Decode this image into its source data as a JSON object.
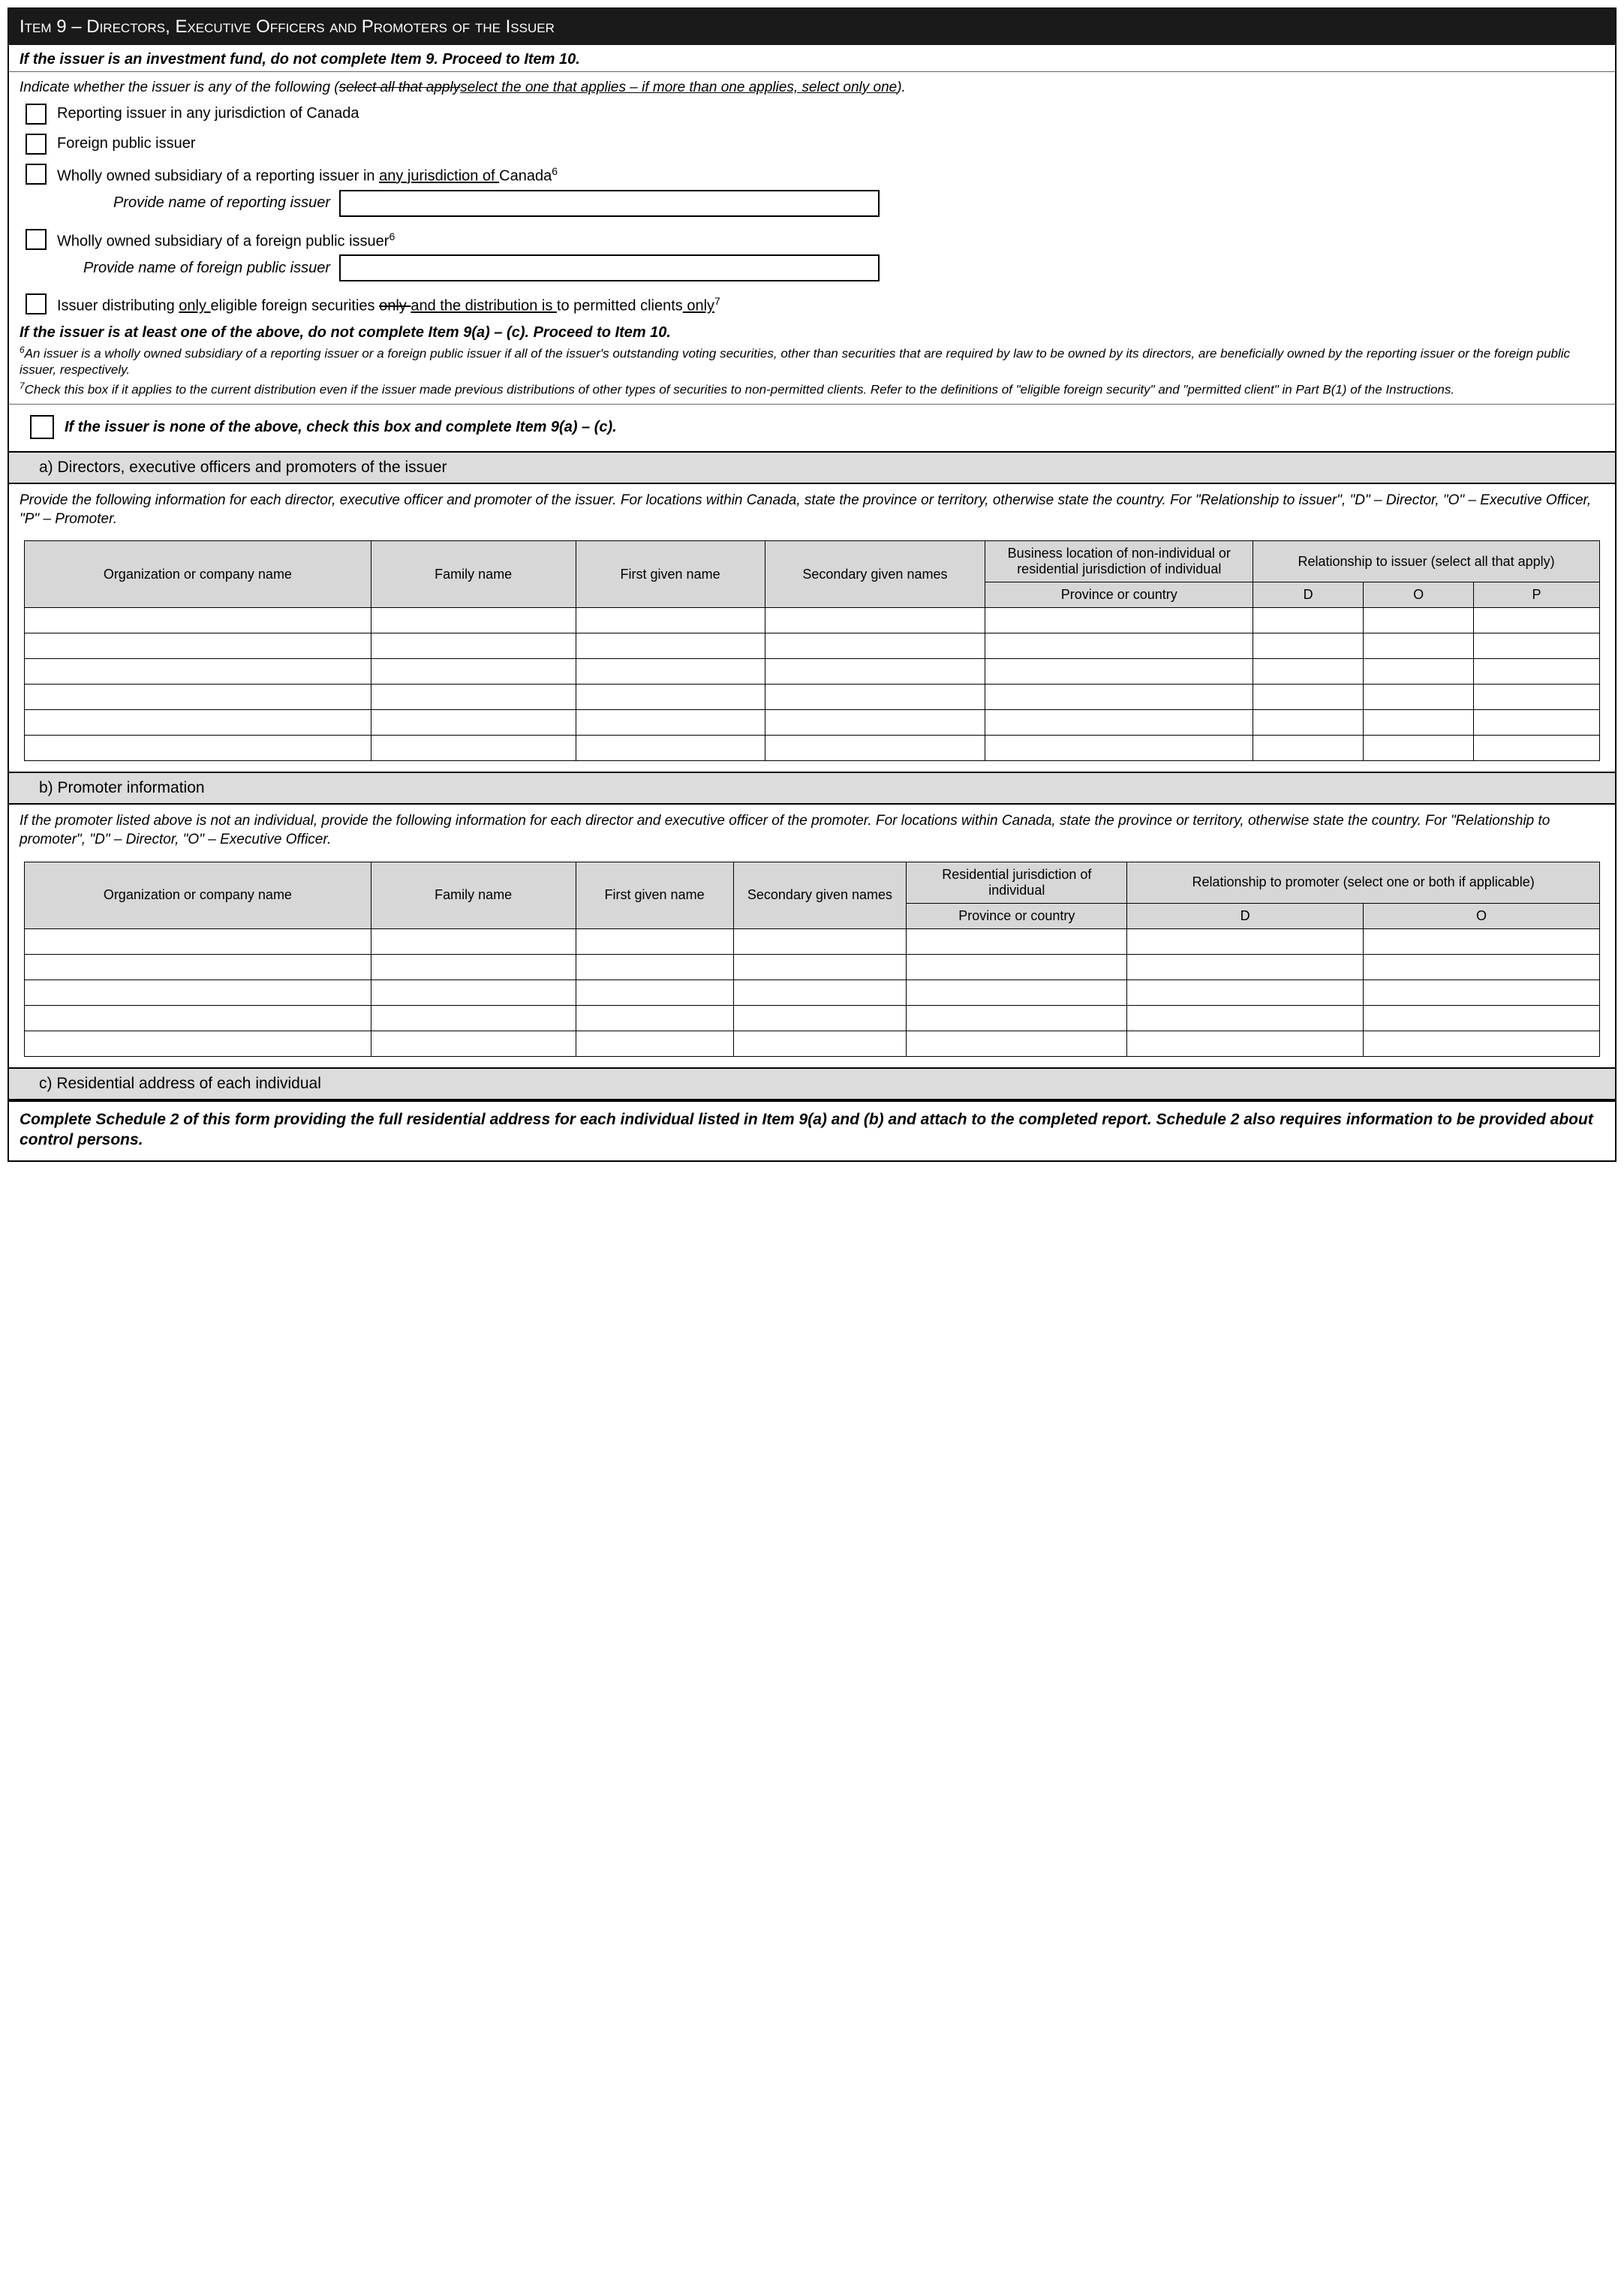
{
  "header": "Item 9 – Directors, Executive Officers and Promoters of the Issuer",
  "top_instruction": "If the issuer is an investment fund, do not complete Item 9. Proceed to Item 10.",
  "indicate": {
    "prefix": "Indicate whether the issuer is any of the following (",
    "strike1": "select all that apply",
    "underline1": "select the one that applies – if more than one applies, select only one",
    "suffix": ")."
  },
  "checks": {
    "c1": "Reporting issuer in any jurisdiction of Canada",
    "c2": "Foreign public issuer",
    "c3_pre": "Wholly owned subsidiary of a reporting issuer in ",
    "c3_under": "any jurisdiction of ",
    "c3_post": "Canada",
    "c3_sup": "6",
    "c3_provide": "Provide name of reporting issuer",
    "c4_text": "Wholly owned subsidiary of a foreign public issuer",
    "c4_sup": "6",
    "c4_provide": "Provide name of foreign public issuer",
    "c5_pre": "Issuer distributing ",
    "c5_u1": "only ",
    "c5_mid1": "eligible foreign securities ",
    "c5_strike": "only ",
    "c5_u2": "and the distribution is ",
    "c5_mid2": "to permitted clients",
    "c5_u3": " only",
    "c5_sup": "7"
  },
  "proceed": "If the issuer is at least one of the above, do not complete Item 9(a) – (c). Proceed to Item 10.",
  "fn6_sup": "6",
  "fn6": "An issuer is a wholly owned subsidiary of a reporting issuer or a foreign public issuer if all of the issuer's outstanding voting securities, other than securities that are required by law to be owned by its directors, are beneficially owned by the reporting issuer or the foreign public issuer, respectively.",
  "fn7_sup": "7",
  "fn7": "Check this box if it applies to the current distribution even if the issuer made previous distributions of other types of securities to non-permitted clients. Refer to the definitions of \"eligible foreign security\" and \"permitted client\" in Part B(1) of the Instructions.",
  "none_box": "If the issuer is none of the above, check this box and complete Item 9(a) – (c).",
  "section_a_title": "a)    Directors, executive officers and promoters of the issuer",
  "section_a_body": "Provide the following information for each director, executive officer and promoter of the issuer. For locations within Canada, state the province or territory, otherwise state the country. For \"Relationship to issuer\", \"D\" – Director, \"O\" – Executive Officer, \"P\" – Promoter.",
  "table_a": {
    "h_org": "Organization or company name",
    "h_family": "Family name",
    "h_first": "First given name",
    "h_second": "Secondary given names",
    "h_bizloc": "Business location of non-individual or residential jurisdiction of individual",
    "h_rel": "Relationship to issuer (select all that apply)",
    "h_prov": "Province or country",
    "h_d": "D",
    "h_o": "O",
    "h_p": "P",
    "rows": 6,
    "col_widths": [
      "20%",
      "12%",
      "11%",
      "13%",
      "16%",
      "6%",
      "6%",
      "6%"
    ]
  },
  "section_b_title": "b)    Promoter information",
  "section_b_body": "If the promoter listed above is not an individual, provide the following information for each director and executive officer of the promoter. For locations within Canada, state the province or territory, otherwise state the country. For \"Relationship to promoter\", \"D\" – Director, \"O\" – Executive Officer.",
  "table_b": {
    "h_org": "Organization or company name",
    "h_family": "Family name",
    "h_first": "First given name",
    "h_second": "Secondary given names",
    "h_res": "Residential jurisdiction of individual",
    "h_rel": "Relationship to promoter (select one or both if applicable)",
    "h_prov": "Province or country",
    "h_d": "D",
    "h_o": "O",
    "rows": 5
  },
  "section_c_title": "c)    Residential address of each individual",
  "bottom": "Complete Schedule 2 of this form providing the full residential address for each individual listed in Item 9(a) and (b) and attach to the completed report. Schedule 2 also requires information to be provided about control persons."
}
